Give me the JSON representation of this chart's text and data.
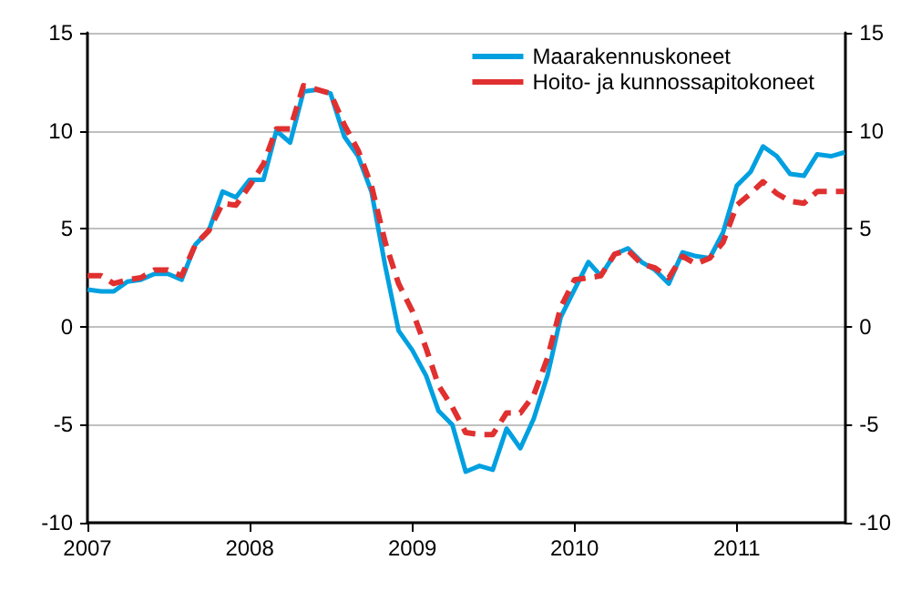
{
  "chart_data": {
    "type": "line",
    "x": [
      "2007-01",
      "2007-02",
      "2007-03",
      "2007-04",
      "2007-05",
      "2007-06",
      "2007-07",
      "2007-08",
      "2007-09",
      "2007-10",
      "2007-11",
      "2007-12",
      "2008-01",
      "2008-02",
      "2008-03",
      "2008-04",
      "2008-05",
      "2008-06",
      "2008-07",
      "2008-08",
      "2008-09",
      "2008-10",
      "2008-11",
      "2008-12",
      "2009-01",
      "2009-02",
      "2009-03",
      "2009-04",
      "2009-05",
      "2009-06",
      "2009-07",
      "2009-08",
      "2009-09",
      "2009-10",
      "2009-11",
      "2009-12",
      "2010-01",
      "2010-02",
      "2010-03",
      "2010-04",
      "2010-05",
      "2010-06",
      "2010-07",
      "2010-08",
      "2010-09",
      "2010-10",
      "2010-11",
      "2010-12",
      "2011-01",
      "2011-02",
      "2011-03",
      "2011-04",
      "2011-05",
      "2011-06",
      "2011-07",
      "2011-08",
      "2011-09"
    ],
    "series": [
      {
        "name": "Maarakennuskoneet",
        "color": "#00a0e0",
        "line_style": "solid",
        "values": [
          1.9,
          1.8,
          1.8,
          2.3,
          2.4,
          2.7,
          2.7,
          2.4,
          4.2,
          4.9,
          6.9,
          6.6,
          7.5,
          7.5,
          10.0,
          9.4,
          12.0,
          12.1,
          11.9,
          9.7,
          8.7,
          6.9,
          3.1,
          -0.2,
          -1.2,
          -2.5,
          -4.3,
          -5.0,
          -7.4,
          -7.1,
          -7.3,
          -5.2,
          -6.2,
          -4.7,
          -2.5,
          0.5,
          1.9,
          3.3,
          2.6,
          3.7,
          4.0,
          3.3,
          2.9,
          2.2,
          3.8,
          3.6,
          3.5,
          4.8,
          7.2,
          7.9,
          9.2,
          8.7,
          7.8,
          7.7,
          8.8,
          8.7,
          8.9
        ]
      },
      {
        "name": "Hoito- ja kunnossapitokoneet",
        "color": "#e03030",
        "line_style": "dashed",
        "values": [
          2.6,
          2.6,
          2.2,
          2.4,
          2.5,
          2.9,
          2.9,
          2.6,
          4.2,
          4.9,
          6.3,
          6.2,
          7.2,
          8.3,
          10.1,
          10.1,
          12.3,
          12.1,
          11.9,
          10.3,
          9.0,
          7.2,
          4.3,
          2.2,
          0.8,
          -1.1,
          -3.0,
          -4.1,
          -5.4,
          -5.5,
          -5.5,
          -4.4,
          -4.4,
          -3.5,
          -1.6,
          1.0,
          2.4,
          2.5,
          2.6,
          3.7,
          3.9,
          3.2,
          3.0,
          2.5,
          3.6,
          3.2,
          3.5,
          4.3,
          6.2,
          6.8,
          7.4,
          6.8,
          6.4,
          6.3,
          6.9,
          6.9,
          6.9
        ]
      }
    ],
    "xlim": [
      "2007-01",
      "2011-09"
    ],
    "xticks": [
      {
        "value": "2007-01",
        "label": "2007"
      },
      {
        "value": "2008-01",
        "label": "2008"
      },
      {
        "value": "2009-01",
        "label": "2009"
      },
      {
        "value": "2010-01",
        "label": "2010"
      },
      {
        "value": "2011-01",
        "label": "2011"
      }
    ],
    "ylim": [
      -10,
      15
    ],
    "yticks": [
      -10,
      -5,
      0,
      5,
      10,
      15
    ],
    "y2lim": [
      -10,
      15
    ],
    "y2ticks": [
      -10,
      -5,
      0,
      5,
      10,
      15
    ],
    "grid": "y",
    "legend": "top right",
    "marker": "none"
  }
}
